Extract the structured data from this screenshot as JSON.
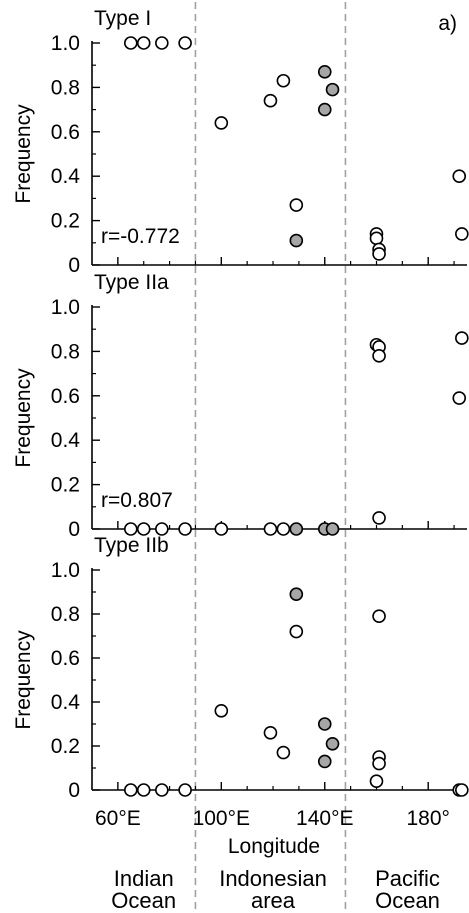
{
  "chart_data": {
    "type": "scatter",
    "corner_label": "a)",
    "xlabel": "Longitude",
    "x_ticks": [
      {
        "value": 60,
        "label": "60°E"
      },
      {
        "value": 100,
        "label": "100°E"
      },
      {
        "value": 140,
        "label": "140°E"
      },
      {
        "value": 180,
        "label": "180°"
      }
    ],
    "xlim": [
      50,
      195
    ],
    "y_ticks": [
      {
        "value": 0,
        "label": "0"
      },
      {
        "value": 0.2,
        "label": "0.2"
      },
      {
        "value": 0.4,
        "label": "0.4"
      },
      {
        "value": 0.6,
        "label": "0.6"
      },
      {
        "value": 0.8,
        "label": "0.8"
      },
      {
        "value": 1.0,
        "label": "1.0"
      }
    ],
    "ylim": [
      0,
      1.0
    ],
    "divider_longitudes": [
      90,
      148
    ],
    "regions": [
      {
        "lines": [
          "Indian",
          "Ocean"
        ],
        "center": 70
      },
      {
        "lines": [
          "Indonesian",
          "area"
        ],
        "center": 120
      },
      {
        "lines": [
          "Pacific",
          "Ocean"
        ],
        "center": 172
      }
    ],
    "colors": {
      "open_marker": "#ffffff",
      "filled_marker": "#a6a6a6",
      "divider": "#a0a0a0"
    },
    "panels": [
      {
        "title": "Type I",
        "ylabel": "Frequency",
        "correlation": "r=-0.772",
        "points": [
          {
            "x": 65,
            "y": 1.0,
            "filled": false
          },
          {
            "x": 70,
            "y": 1.0,
            "filled": false
          },
          {
            "x": 77,
            "y": 1.0,
            "filled": false
          },
          {
            "x": 86,
            "y": 1.0,
            "filled": false
          },
          {
            "x": 100,
            "y": 0.64,
            "filled": false
          },
          {
            "x": 119,
            "y": 0.74,
            "filled": false
          },
          {
            "x": 124,
            "y": 0.83,
            "filled": false
          },
          {
            "x": 129,
            "y": 0.27,
            "filled": false
          },
          {
            "x": 129,
            "y": 0.11,
            "filled": true
          },
          {
            "x": 140,
            "y": 0.87,
            "filled": true
          },
          {
            "x": 143,
            "y": 0.79,
            "filled": true
          },
          {
            "x": 140,
            "y": 0.7,
            "filled": true
          },
          {
            "x": 160,
            "y": 0.14,
            "filled": false
          },
          {
            "x": 160,
            "y": 0.12,
            "filled": false
          },
          {
            "x": 161,
            "y": 0.07,
            "filled": false
          },
          {
            "x": 161,
            "y": 0.05,
            "filled": false
          },
          {
            "x": 192,
            "y": 0.4,
            "filled": false
          },
          {
            "x": 193,
            "y": 0.14,
            "filled": false
          }
        ]
      },
      {
        "title": "Type IIa",
        "ylabel": "Frequency",
        "correlation": "r=0.807",
        "points": [
          {
            "x": 65,
            "y": 0,
            "filled": false
          },
          {
            "x": 70,
            "y": 0,
            "filled": false
          },
          {
            "x": 77,
            "y": 0,
            "filled": false
          },
          {
            "x": 86,
            "y": 0,
            "filled": false
          },
          {
            "x": 100,
            "y": 0,
            "filled": false
          },
          {
            "x": 119,
            "y": 0,
            "filled": false
          },
          {
            "x": 124,
            "y": 0,
            "filled": false
          },
          {
            "x": 129,
            "y": 0,
            "filled": true
          },
          {
            "x": 140,
            "y": 0,
            "filled": true
          },
          {
            "x": 143,
            "y": 0,
            "filled": true
          },
          {
            "x": 160,
            "y": 0.83,
            "filled": false
          },
          {
            "x": 161,
            "y": 0.82,
            "filled": false
          },
          {
            "x": 161,
            "y": 0.78,
            "filled": false
          },
          {
            "x": 161,
            "y": 0.05,
            "filled": false
          },
          {
            "x": 193,
            "y": 0.86,
            "filled": false
          },
          {
            "x": 192,
            "y": 0.59,
            "filled": false
          }
        ]
      },
      {
        "title": "Type IIb",
        "ylabel": "Frequency",
        "correlation": "",
        "points": [
          {
            "x": 65,
            "y": 0,
            "filled": false
          },
          {
            "x": 70,
            "y": 0,
            "filled": false
          },
          {
            "x": 77,
            "y": 0,
            "filled": false
          },
          {
            "x": 86,
            "y": 0,
            "filled": false
          },
          {
            "x": 100,
            "y": 0.36,
            "filled": false
          },
          {
            "x": 119,
            "y": 0.26,
            "filled": false
          },
          {
            "x": 124,
            "y": 0.17,
            "filled": false
          },
          {
            "x": 129,
            "y": 0.89,
            "filled": true
          },
          {
            "x": 129,
            "y": 0.72,
            "filled": false
          },
          {
            "x": 140,
            "y": 0.3,
            "filled": true
          },
          {
            "x": 143,
            "y": 0.21,
            "filled": true
          },
          {
            "x": 140,
            "y": 0.13,
            "filled": true
          },
          {
            "x": 161,
            "y": 0.79,
            "filled": false
          },
          {
            "x": 161,
            "y": 0.15,
            "filled": false
          },
          {
            "x": 161,
            "y": 0.12,
            "filled": false
          },
          {
            "x": 160,
            "y": 0.04,
            "filled": false
          },
          {
            "x": 192,
            "y": 0,
            "filled": false
          },
          {
            "x": 193,
            "y": 0,
            "filled": false
          }
        ]
      }
    ]
  }
}
